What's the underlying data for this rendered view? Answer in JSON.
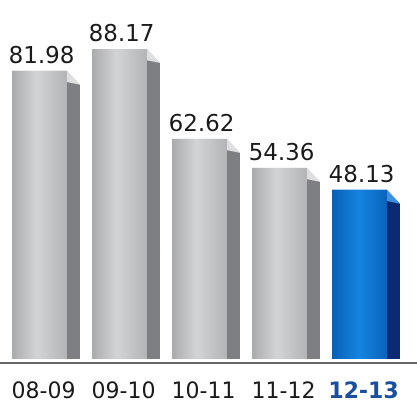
{
  "chart_data": {
    "type": "bar",
    "title": "",
    "xlabel": "",
    "ylabel": "",
    "categories": [
      "08-09",
      "09-10",
      "10-11",
      "11-12",
      "12-13"
    ],
    "values": [
      81.98,
      88.17,
      62.62,
      54.36,
      48.13
    ],
    "value_labels": [
      "81.98",
      "88.17",
      "62.62",
      "54.36",
      "48.13"
    ],
    "highlighted_category": "12-13",
    "ylim": [
      0,
      95
    ],
    "grid": false,
    "legend": "none",
    "style": "3d-extruded",
    "colors": {
      "bar_front": "#c4c4c6",
      "bar_side": "#7d7f82",
      "bar_top": "#dedfe0",
      "highlight_front": "#0b6ec9",
      "highlight_side": "#0a2a73",
      "highlight_top": "#3d8fe0",
      "axis_line": "#333333"
    }
  }
}
